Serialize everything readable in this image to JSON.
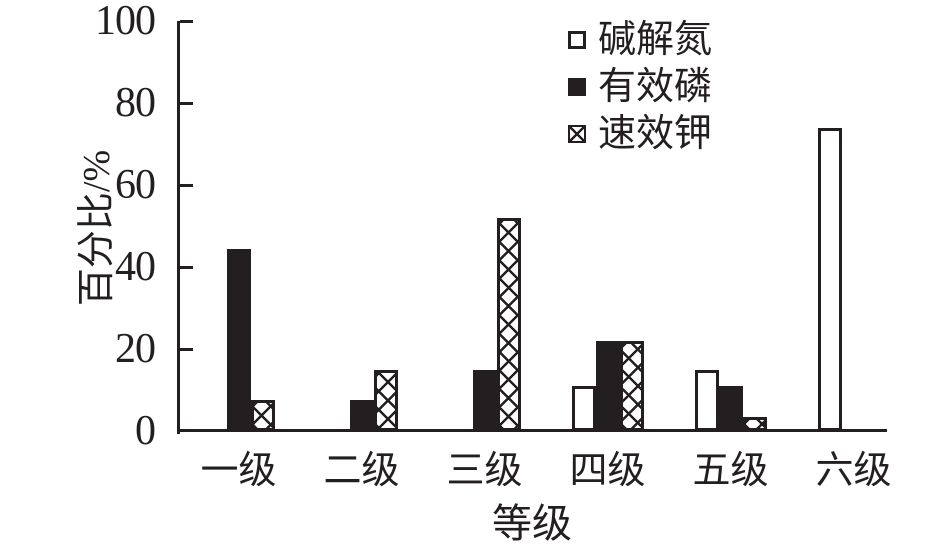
{
  "chart_data": {
    "type": "bar",
    "xlabel": "等级",
    "ylabel": "百分比/%",
    "ylim": [
      0,
      100
    ],
    "yticks": [
      0,
      20,
      40,
      60,
      80,
      100
    ],
    "categories": [
      "一级",
      "二级",
      "三级",
      "四级",
      "五级",
      "六级"
    ],
    "category_ids": [
      "grade-1",
      "grade-2",
      "grade-3",
      "grade-4",
      "grade-5",
      "grade-6"
    ],
    "series": [
      {
        "id": "alkali-n",
        "name": "碱解氮",
        "style": "open",
        "values": [
          0,
          0,
          0,
          11,
          15,
          74
        ]
      },
      {
        "id": "available-p",
        "name": "有效磷",
        "style": "solid",
        "values": [
          44.5,
          7.5,
          15,
          22,
          11,
          0
        ]
      },
      {
        "id": "available-k",
        "name": "速效钾",
        "style": "crosshatch",
        "values": [
          7.5,
          15,
          52,
          22,
          3.5,
          0
        ]
      }
    ],
    "legend_position": "top-right-inside",
    "grid": false,
    "colors": {
      "ink": "#231f20",
      "background": "#ffffff"
    }
  }
}
